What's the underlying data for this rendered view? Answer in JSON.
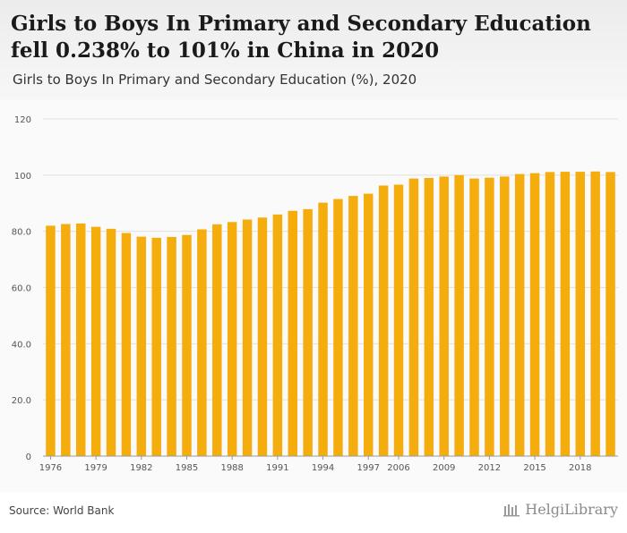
{
  "header": {
    "title": "Girls to Boys In Primary and Secondary Education fell 0.238% to 101% in China in 2020",
    "subtitle": "Girls to Boys In Primary and Secondary Education (%), 2020"
  },
  "footer": {
    "source": "Source: World Bank",
    "brand": "HelgiLibrary"
  },
  "colors": {
    "bar": "#f5ac0d",
    "grid": "#e0e0e0",
    "tick_text": "#555555"
  },
  "chart_data": {
    "type": "bar",
    "title": "Girls to Boys In Primary and Secondary Education (%), 2020",
    "xlabel": "",
    "ylabel": "",
    "ylim": [
      0,
      120
    ],
    "yticks": [
      "0",
      "20.0",
      "40.0",
      "60.0",
      "80.0",
      "100",
      "120"
    ],
    "grid": true,
    "categories": [
      "1976",
      "1977",
      "1978",
      "1979",
      "1980",
      "1981",
      "1982",
      "1983",
      "1984",
      "1985",
      "1986",
      "1987",
      "1988",
      "1989",
      "1990",
      "1991",
      "1992",
      "1993",
      "1994",
      "1995",
      "1996",
      "1997",
      "2005",
      "2006",
      "2007",
      "2008",
      "2009",
      "2010",
      "2011",
      "2012",
      "2013",
      "2014",
      "2015",
      "2016",
      "2017",
      "2018",
      "2019",
      "2020"
    ],
    "xtick_labels": [
      "1976",
      "1979",
      "1982",
      "1985",
      "1988",
      "1991",
      "1994",
      "1997",
      "2006",
      "2009",
      "2012",
      "2015",
      "2018"
    ],
    "values": [
      82.0,
      82.6,
      82.8,
      81.6,
      80.9,
      79.4,
      78.1,
      77.7,
      78.0,
      78.7,
      80.7,
      82.5,
      83.3,
      84.2,
      84.9,
      86.0,
      87.3,
      87.9,
      90.2,
      91.5,
      92.6,
      93.4,
      96.3,
      96.6,
      98.8,
      99.0,
      99.5,
      100.0,
      98.8,
      99.1,
      99.5,
      100.4,
      100.7,
      101.1,
      101.2,
      101.2,
      101.3,
      101.1
    ]
  }
}
